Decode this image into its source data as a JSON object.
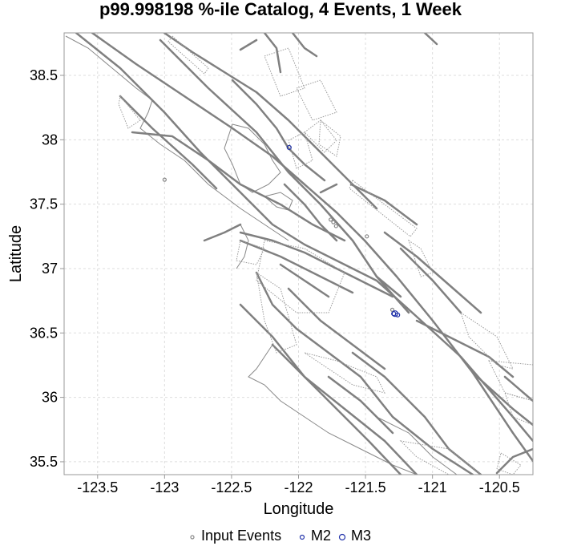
{
  "chart_data": {
    "type": "scatter",
    "title": "p99.998198 %-ile Catalog, 4 Events, 1 Week",
    "xlabel": "Longitude",
    "ylabel": "Latitude",
    "xlim": [
      -123.75,
      -120.25
    ],
    "ylim": [
      35.4,
      38.83
    ],
    "xticks": [
      -123.5,
      -123,
      -122.5,
      -122,
      -121.5,
      -121,
      -120.5
    ],
    "xtick_labels": [
      "-123.5",
      "-123",
      "-122.5",
      "-122",
      "-121.5",
      "-121",
      "-120.5"
    ],
    "yticks": [
      35.5,
      36,
      36.5,
      37,
      37.5,
      38,
      38.5
    ],
    "ytick_labels": [
      "35.5",
      "36",
      "36.5",
      "37",
      "37.5",
      "38",
      "38.5"
    ],
    "grid": true,
    "legend_position": "bottom",
    "series": [
      {
        "name": "Input Events",
        "color": "#888888",
        "marker_size": 2,
        "points": [
          [
            -123.0,
            37.69
          ],
          [
            -121.49,
            37.25
          ],
          [
            -121.76,
            37.38
          ],
          [
            -121.74,
            37.36
          ],
          [
            -121.72,
            37.33
          ],
          [
            -121.3,
            36.68
          ]
        ]
      },
      {
        "name": "M2",
        "color": "#2233aa",
        "marker_size": 2.5,
        "points": [
          [
            -122.07,
            37.94
          ],
          [
            -121.29,
            36.65
          ],
          [
            -121.26,
            36.64
          ]
        ]
      },
      {
        "name": "M3",
        "color": "#2233aa",
        "marker_size": 3.5,
        "points": [
          [
            -121.28,
            36.65
          ]
        ]
      }
    ],
    "fault_color": "#808080"
  }
}
